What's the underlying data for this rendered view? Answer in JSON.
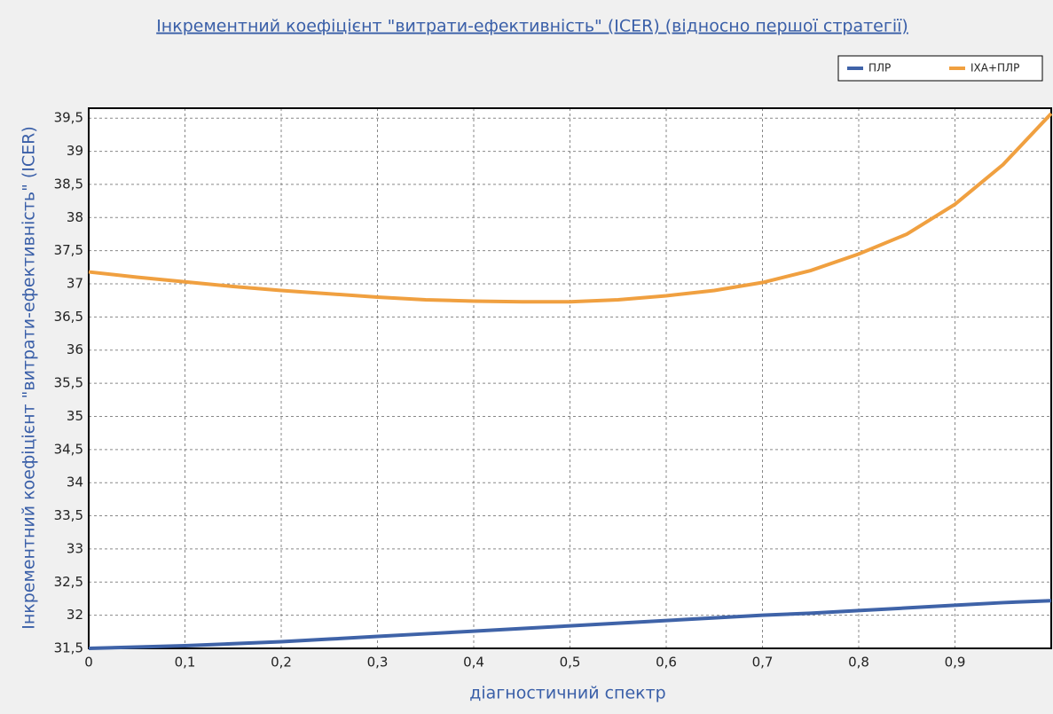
{
  "chart_data": {
    "type": "line",
    "title": "Інкрементний коефіцієнт \"витрати-ефективність\" (ICER) (відносно першої стратегії)",
    "x_label": "діагностичний спектр",
    "y_label": "Інкрементний коефіцієнт \"витрати-ефективність\" (ICER)",
    "x": [
      0,
      0.05,
      0.1,
      0.15,
      0.2,
      0.25,
      0.3,
      0.35,
      0.4,
      0.45,
      0.5,
      0.55,
      0.6,
      0.65,
      0.7,
      0.75,
      0.8,
      0.85,
      0.9,
      0.95,
      1.0
    ],
    "series": [
      {
        "name": "ПЛР",
        "color": "#3f63a8",
        "values": [
          31.5,
          31.52,
          31.54,
          31.57,
          31.6,
          31.64,
          31.68,
          31.72,
          31.76,
          31.8,
          31.84,
          31.88,
          31.92,
          31.96,
          32.0,
          32.03,
          32.07,
          32.11,
          32.15,
          32.19,
          32.22
        ]
      },
      {
        "name": "ІХА+ПЛР",
        "color": "#f0a040",
        "values": [
          37.18,
          37.1,
          37.03,
          36.96,
          36.9,
          36.85,
          36.8,
          36.76,
          36.74,
          36.73,
          36.73,
          36.76,
          36.82,
          36.9,
          37.02,
          37.2,
          37.45,
          37.75,
          38.2,
          38.8,
          39.57
        ]
      }
    ],
    "xlim": [
      0,
      1.0
    ],
    "xticks": [
      0,
      {
        "value": 0.1,
        "label": "0,1"
      },
      {
        "value": 0.2,
        "label": "0,2"
      },
      {
        "value": 0.3,
        "label": "0,3"
      },
      {
        "value": 0.4,
        "label": "0,4"
      },
      {
        "value": 0.5,
        "label": "0,5"
      },
      {
        "value": 0.6,
        "label": "0,6"
      },
      {
        "value": 0.7,
        "label": "0,7"
      },
      {
        "value": 0.8,
        "label": "0,8"
      },
      {
        "value": 0.9,
        "label": "0,9"
      }
    ],
    "ylim": [
      31.5,
      39.65
    ],
    "yticks": [
      {
        "value": 31.5,
        "label": "31,5"
      },
      32,
      {
        "value": 32.5,
        "label": "32,5"
      },
      33,
      {
        "value": 33.5,
        "label": "33,5"
      },
      34,
      {
        "value": 34.5,
        "label": "34,5"
      },
      35,
      {
        "value": 35.5,
        "label": "35,5"
      },
      36,
      {
        "value": 36.5,
        "label": "36,5"
      },
      37,
      {
        "value": 37.5,
        "label": "37,5"
      },
      38,
      {
        "value": 38.5,
        "label": "38,5"
      },
      39,
      {
        "value": 39.5,
        "label": "39,5"
      }
    ],
    "grid": true,
    "legend": "upper right"
  }
}
